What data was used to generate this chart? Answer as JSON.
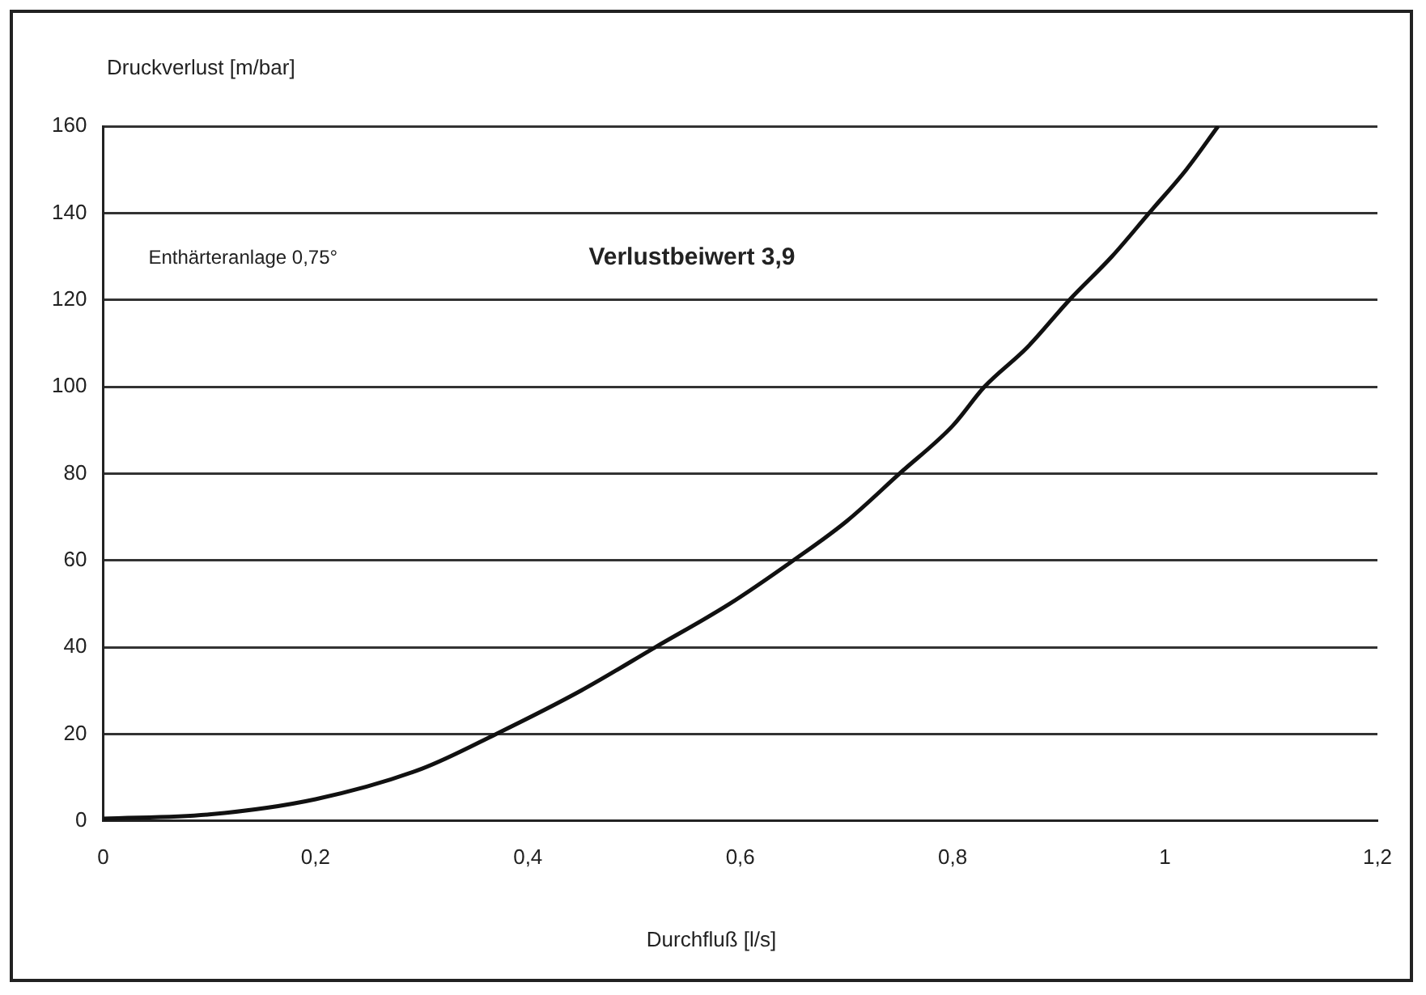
{
  "chart_data": {
    "type": "line",
    "xlabel": "Durchfluß [l/s]",
    "ylabel": "Druckverlust [m/bar]",
    "annotations": [
      "Enthärteranlage 0,75°",
      "Verlustbeiwert 3,9"
    ],
    "x": [
      0,
      0.1,
      0.2,
      0.3,
      0.37,
      0.45,
      0.52,
      0.59,
      0.65,
      0.7,
      0.75,
      0.8,
      0.83,
      0.87,
      0.91,
      0.95,
      0.985,
      1.02,
      1.05
    ],
    "series": [
      {
        "color": "#111111",
        "values": [
          0.5,
          1.5,
          5,
          12,
          20,
          30,
          40,
          50,
          60,
          69,
          80,
          91,
          100,
          109,
          120,
          130,
          140,
          150,
          160
        ]
      }
    ],
    "xlim": [
      0,
      1.2
    ],
    "xticks": [
      0,
      {
        "value": 0.2,
        "label": "0,2"
      },
      {
        "value": 0.4,
        "label": "0,4"
      },
      {
        "value": 0.6,
        "label": "0,6"
      },
      {
        "value": 0.8,
        "label": "0,8"
      },
      1,
      {
        "value": 1.2,
        "label": "1,2"
      }
    ],
    "ylim": [
      0,
      160
    ],
    "yticks": [
      0,
      20,
      40,
      60,
      80,
      100,
      120,
      140,
      160
    ],
    "grid": "y",
    "legend": false,
    "marker": "none",
    "line_style": "solid"
  }
}
